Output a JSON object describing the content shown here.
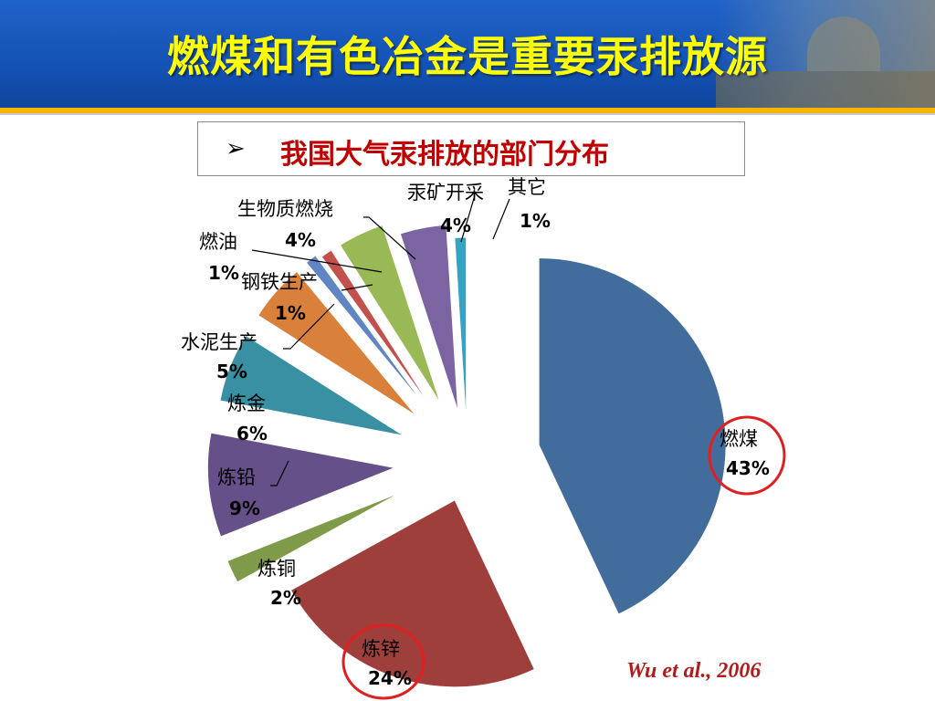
{
  "title": "燃煤和有色冶金是重要汞排放源",
  "subtitle": {
    "bullet": "➢",
    "text": "我国大气汞排放的部门分布"
  },
  "citation": "Wu et al., 2006",
  "chart_data": {
    "type": "pie",
    "exploded": true,
    "start_angle_deg": 0,
    "direction": "clockwise",
    "slices": [
      {
        "name": "燃煤",
        "value": 43,
        "label": "43%",
        "color": "#426c9c",
        "highlight": true
      },
      {
        "name": "炼锌",
        "value": 24,
        "label": "24%",
        "color": "#9e3f3c",
        "highlight": true
      },
      {
        "name": "炼铜",
        "value": 2,
        "label": "2%",
        "color": "#7f9a48"
      },
      {
        "name": "炼铅",
        "value": 9,
        "label": "9%",
        "color": "#65508a"
      },
      {
        "name": "炼金",
        "value": 6,
        "label": "6%",
        "color": "#3990a3"
      },
      {
        "name": "水泥生产",
        "value": 5,
        "label": "5%",
        "color": "#d9803a"
      },
      {
        "name": "钢铁生产",
        "value": 1,
        "label": "1%",
        "color": "#5f85c4"
      },
      {
        "name": "燃油",
        "value": 1,
        "label": "1%",
        "color": "#c4504c"
      },
      {
        "name": "生物质燃烧",
        "value": 4,
        "label": "4%",
        "color": "#98b955"
      },
      {
        "name": "汞矿开采",
        "value": 4,
        "label": "4%",
        "color": "#7c64a3"
      },
      {
        "name": "其它",
        "value": 1,
        "label": "1%",
        "color": "#34a3c4"
      }
    ],
    "highlight_color": "#e02020"
  }
}
